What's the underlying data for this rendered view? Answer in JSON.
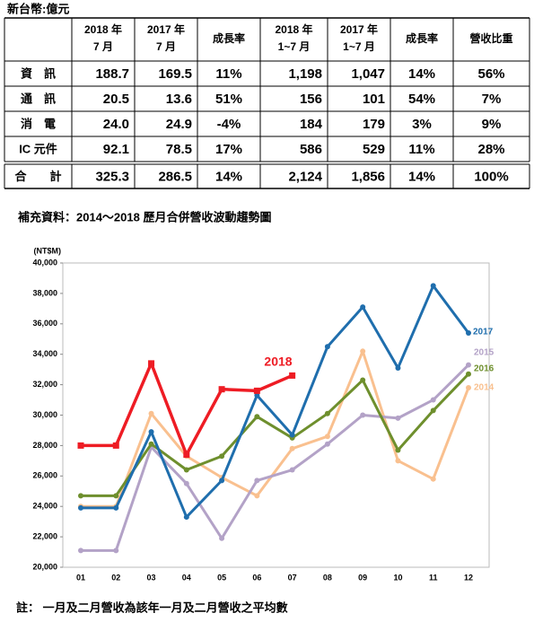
{
  "table": {
    "unit": "新台幣:億元",
    "header": [
      [
        "2018 年",
        "7 月"
      ],
      [
        "2017 年",
        "7 月"
      ],
      [
        "成長率"
      ],
      [
        "2018 年",
        "1~7 月"
      ],
      [
        "2017 年",
        "1~7 月"
      ],
      [
        "成長率"
      ],
      [
        "營收比重"
      ]
    ],
    "rows": [
      [
        "資　訊",
        "188.7",
        "169.5",
        "11%",
        "1,198",
        "1,047",
        "14%",
        "56%"
      ],
      [
        "通　訊",
        "20.5",
        "13.6",
        "51%",
        "156",
        "101",
        "54%",
        "7%"
      ],
      [
        "消　電",
        "24.0",
        "24.9",
        "-4%",
        "184",
        "179",
        "3%",
        "9%"
      ],
      [
        "IC 元件",
        "92.1",
        "78.5",
        "17%",
        "586",
        "529",
        "11%",
        "28%"
      ],
      [
        "合　　計",
        "325.3",
        "286.5",
        "14%",
        "2,124",
        "1,856",
        "14%",
        "100%"
      ]
    ]
  },
  "chart_data": {
    "type": "line",
    "title": "補充資料：2014～2018 歷月合併營收波動趨勢圖",
    "y_label": "(NT$M)",
    "categories": [
      "01",
      "02",
      "03",
      "04",
      "05",
      "06",
      "07",
      "08",
      "09",
      "10",
      "11",
      "12"
    ],
    "series": [
      {
        "name": "2014",
        "color": "#f9c08f",
        "values": [
          24000,
          24000,
          30100,
          27300,
          25900,
          24700,
          27800,
          28600,
          34200,
          27000,
          25800,
          31800
        ]
      },
      {
        "name": "2015",
        "color": "#b3a2c7",
        "values": [
          21100,
          21100,
          27900,
          25500,
          21900,
          25700,
          26400,
          28100,
          30000,
          29800,
          31000,
          33300
        ]
      },
      {
        "name": "2016",
        "color": "#6e8f2d",
        "values": [
          24700,
          24700,
          28100,
          26400,
          27300,
          29900,
          28500,
          30100,
          32300,
          27700,
          30300,
          32700
        ]
      },
      {
        "name": "2017",
        "color": "#1f6ead",
        "values": [
          23900,
          23900,
          28900,
          23300,
          25700,
          31300,
          28700,
          34500,
          37100,
          33100,
          38500,
          35400
        ]
      },
      {
        "name": "2018",
        "color": "#ee1c24",
        "values": [
          28000,
          28000,
          33400,
          27400,
          31700,
          31600,
          32600,
          null,
          null,
          null,
          null,
          null
        ]
      }
    ],
    "ylim": [
      20000,
      40000
    ],
    "yticks": [
      {
        "value": 20000,
        "label": "20,000"
      },
      {
        "value": 22000,
        "label": "22,000"
      },
      {
        "value": 24000,
        "label": "24,000"
      },
      {
        "value": 26000,
        "label": "26,000"
      },
      {
        "value": 28000,
        "label": "28,000"
      },
      {
        "value": 30000,
        "label": "30,000"
      },
      {
        "value": 32000,
        "label": "32,000"
      },
      {
        "value": 34000,
        "label": "34,000"
      },
      {
        "value": 36000,
        "label": "36,000"
      },
      {
        "value": 38000,
        "label": "38,000"
      },
      {
        "value": 40000,
        "label": "40,000"
      }
    ]
  },
  "note": "註： 一月及二月營收為該年一月及二月營收之平均數"
}
